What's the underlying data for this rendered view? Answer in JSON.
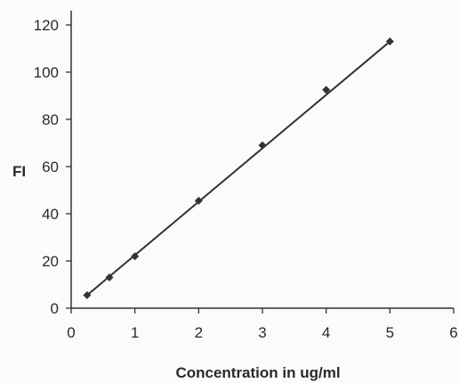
{
  "chart_data": {
    "type": "scatter",
    "title": "",
    "xlabel": "Concentration in ug/ml",
    "ylabel": "FI",
    "xlim": [
      0,
      6
    ],
    "ylim": [
      0,
      120
    ],
    "x_ticks": [
      "0",
      "1",
      "2",
      "3",
      "4",
      "5",
      "6"
    ],
    "y_ticks": [
      "0",
      "20",
      "40",
      "60",
      "80",
      "100",
      "120"
    ],
    "grid": false,
    "legend": "none",
    "marker": "diamond",
    "color": "#333333",
    "trendline": {
      "type": "linear",
      "x": [
        0.25,
        5
      ],
      "y": [
        5.5,
        113
      ]
    },
    "series": [
      {
        "x": [
          0.25,
          0.6,
          1,
          2,
          3,
          4,
          5
        ],
        "y": [
          5.5,
          13,
          22,
          45.5,
          69,
          92.5,
          113
        ]
      }
    ]
  }
}
